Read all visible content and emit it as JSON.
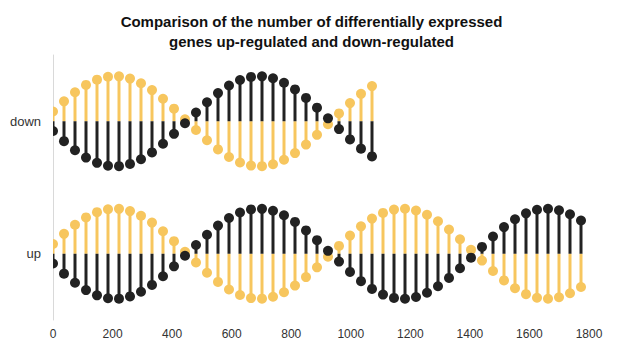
{
  "chart_data": {
    "type": "bar",
    "title": "Comparison of the number of differentially expressed\ngenes up-regulated and down-regulated",
    "orientation": "horizontal",
    "categories": [
      "down",
      "up"
    ],
    "values": [
      1100,
      1790
    ],
    "color": "#f7c65e",
    "xlim": [
      0,
      1800
    ],
    "xticks": [
      0,
      200,
      400,
      600,
      800,
      1000,
      1200,
      1400,
      1600,
      1800
    ],
    "grid": false
  }
}
